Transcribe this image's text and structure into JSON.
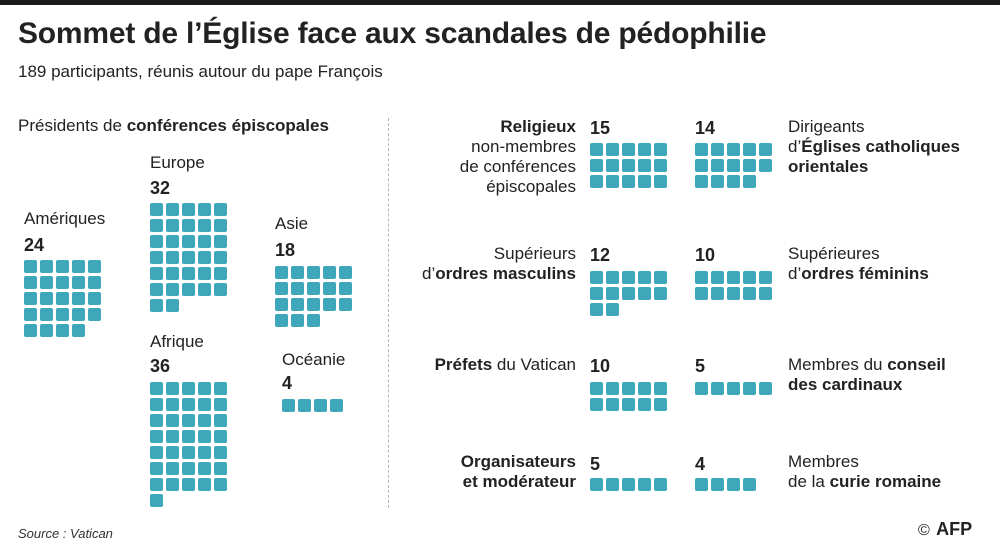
{
  "title": "Sommet de l’Église face aux scandales de pédophilie",
  "subtitle": "189 participants, réunis autour du pape François",
  "section_head": {
    "prefix": "Présidents de ",
    "bold": "conférences épiscopales"
  },
  "source": "Source : Vatican",
  "credit": {
    "copyright": "©",
    "agency": "AFP"
  },
  "colors": {
    "square": "#3ea7b9",
    "text": "#222222",
    "divider": "#b5b5b5"
  },
  "chart_data": {
    "type": "table",
    "total": 189,
    "unit": "participants",
    "groups": [
      {
        "key": "europe",
        "label": "Europe",
        "value": 32,
        "cols": 5
      },
      {
        "key": "ameriques",
        "label": "Amériques",
        "value": 24,
        "cols": 5
      },
      {
        "key": "asie",
        "label": "Asie",
        "value": 18,
        "cols": 5
      },
      {
        "key": "afrique",
        "label": "Afrique",
        "value": 36,
        "cols": 5
      },
      {
        "key": "oceanie",
        "label": "Océanie",
        "value": 4,
        "cols": 5
      },
      {
        "key": "religieux",
        "label_bold": "Religieux",
        "label_rest": [
          "non-membres",
          "de conférences",
          "épiscopales"
        ],
        "value": 15,
        "cols": 5
      },
      {
        "key": "eglises_orientales",
        "label_line1": "Dirigeants",
        "label_line2_prefix": "d’",
        "label_line2_bold": "Églises catholiques",
        "label_line3_bold": "orientales",
        "value": 14,
        "cols": 5
      },
      {
        "key": "superieurs",
        "label_line1": "Supérieurs",
        "label_line2_prefix": "d’",
        "label_line2_bold": "ordres masculins",
        "value": 12,
        "cols": 5
      },
      {
        "key": "superieures",
        "label_line1": "Supérieures",
        "label_line2_prefix": "d’",
        "label_line2_bold": "ordres féminins",
        "value": 10,
        "cols": 5
      },
      {
        "key": "prefets",
        "label_bold": "Préfets",
        "label_rest": " du Vatican",
        "value": 10,
        "cols": 5
      },
      {
        "key": "conseil",
        "label_line1_prefix": "Membres du ",
        "label_line1_bold": "conseil",
        "label_line2_bold": "des cardinaux",
        "value": 5,
        "cols": 5
      },
      {
        "key": "organisateurs",
        "label_line1_bold": "Organisateurs",
        "label_line2_bold": "et modérateur",
        "value": 5,
        "cols": 5
      },
      {
        "key": "curie",
        "label_line1": "Membres",
        "label_line2_prefix": "de la ",
        "label_line2_bold": "curie romaine",
        "value": 4,
        "cols": 5
      }
    ]
  }
}
